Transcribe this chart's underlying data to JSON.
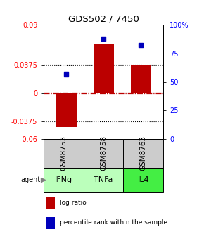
{
  "title": "GDS502 / 7450",
  "samples": [
    "GSM8753",
    "GSM8758",
    "GSM8763"
  ],
  "agents": [
    "IFNg",
    "TNFa",
    "IL4"
  ],
  "log_ratios": [
    -0.045,
    0.065,
    0.0375
  ],
  "percentile_ranks": [
    57,
    88,
    82
  ],
  "ylim_left": [
    -0.06,
    0.09
  ],
  "ylim_right": [
    0,
    100
  ],
  "yticks_left": [
    0.09,
    0.0375,
    0.0,
    -0.0375,
    -0.06
  ],
  "ytick_labels_left": [
    "0.09",
    "0.0375",
    "0",
    "-0.0375",
    "-0.06"
  ],
  "yticks_right": [
    100,
    75,
    50,
    25,
    0
  ],
  "ytick_labels_right": [
    "100%",
    "75",
    "50",
    "25",
    "0"
  ],
  "hlines": [
    0.0375,
    -0.0375
  ],
  "bar_color": "#bb0000",
  "dot_color": "#0000bb",
  "agent_colors": [
    "#bbffbb",
    "#bbffbb",
    "#44ee44"
  ],
  "sample_bg_color": "#cccccc",
  "bar_width": 0.55,
  "title_fontsize": 9.5,
  "tick_fontsize": 7,
  "legend_fontsize": 6.5,
  "agent_label_fontsize": 8,
  "sample_label_fontsize": 7.5
}
